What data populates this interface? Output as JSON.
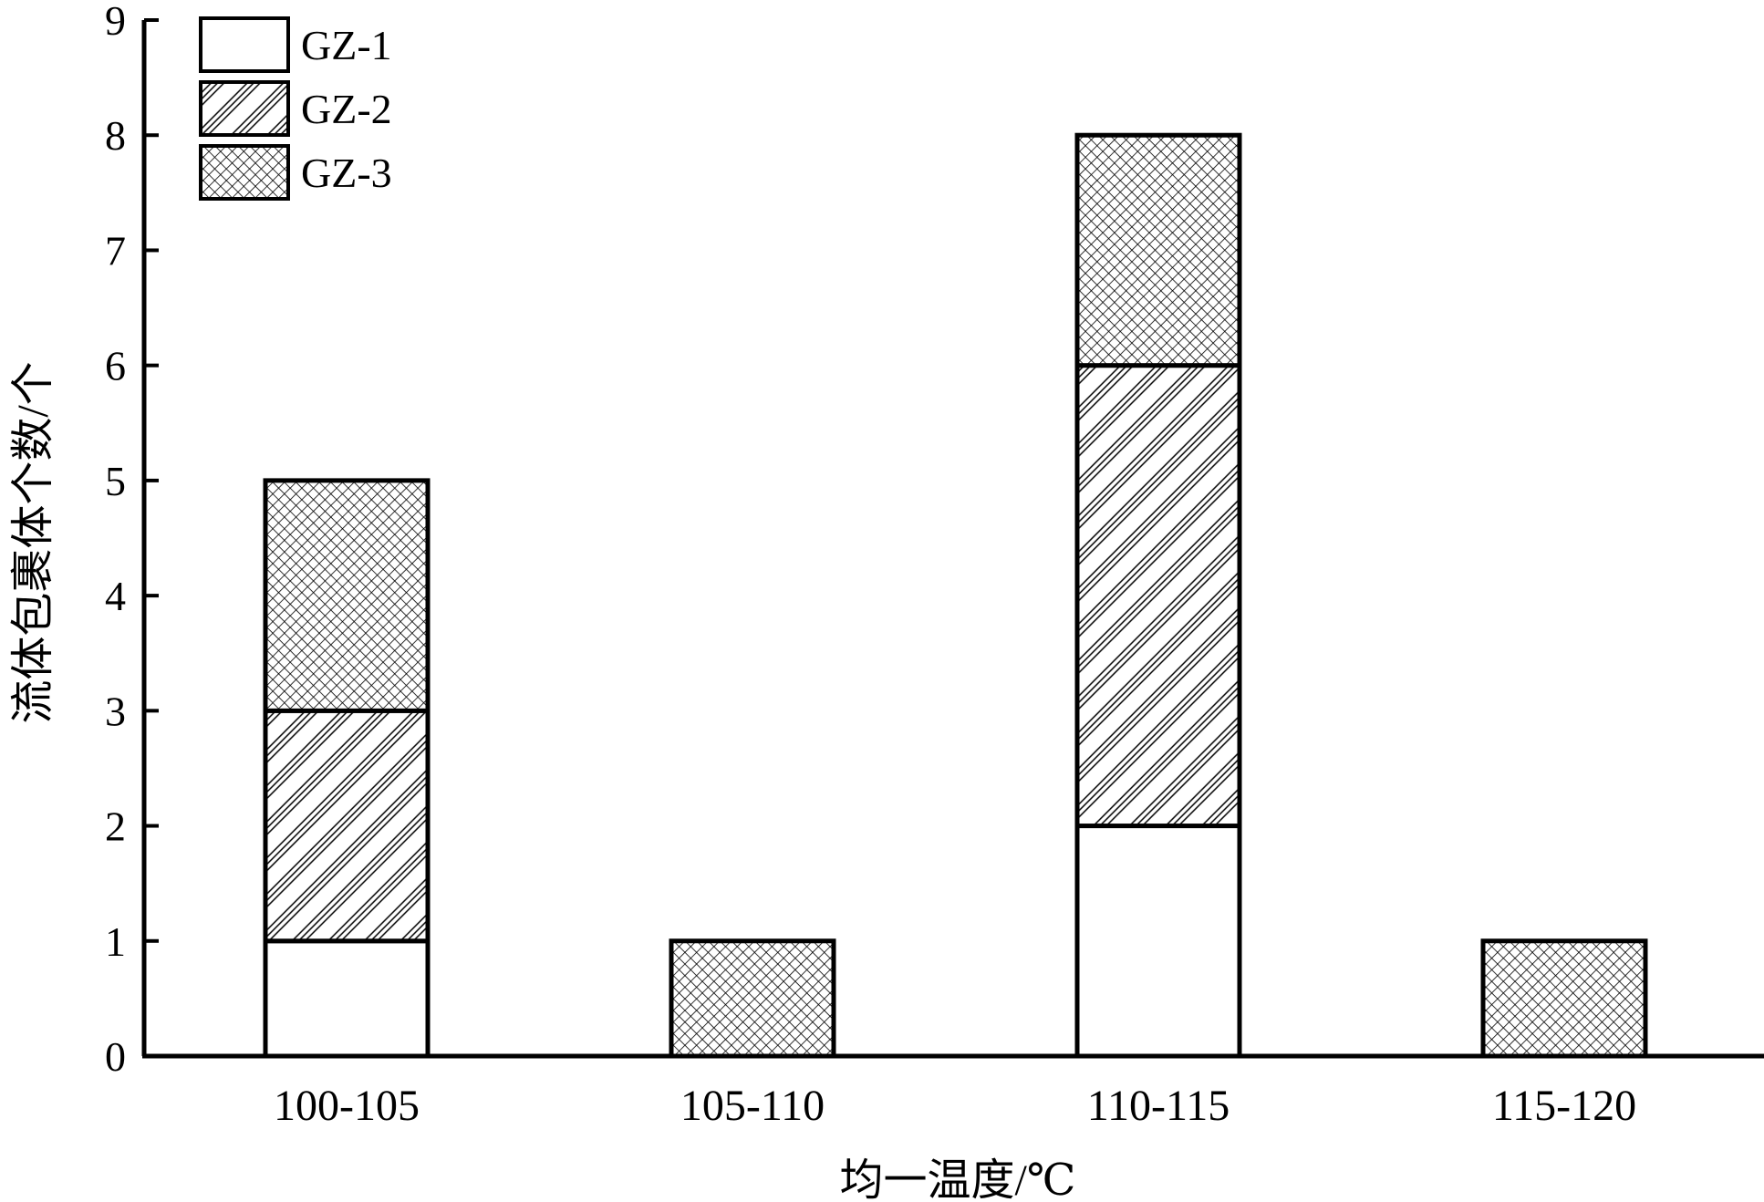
{
  "chart_data": {
    "type": "bar",
    "stacked": true,
    "categories": [
      "100-105",
      "105-110",
      "110-115",
      "115-120"
    ],
    "series": [
      {
        "name": "GZ-1",
        "pattern": "plain",
        "values": [
          1,
          0,
          2,
          0
        ]
      },
      {
        "name": "GZ-2",
        "pattern": "diagonal-hatch",
        "values": [
          2,
          0,
          4,
          0
        ]
      },
      {
        "name": "GZ-3",
        "pattern": "crosshatch",
        "values": [
          2,
          1,
          2,
          1
        ]
      }
    ],
    "xlabel": "均一温度/℃",
    "ylabel": "流体包裹体个数/个",
    "ylim": [
      0,
      9
    ],
    "yticks": [
      0,
      1,
      2,
      3,
      4,
      5,
      6,
      7,
      8,
      9
    ],
    "grid": false,
    "legend_position": "top-left",
    "colors": {
      "stroke": "#000000",
      "fill": "#ffffff"
    }
  }
}
